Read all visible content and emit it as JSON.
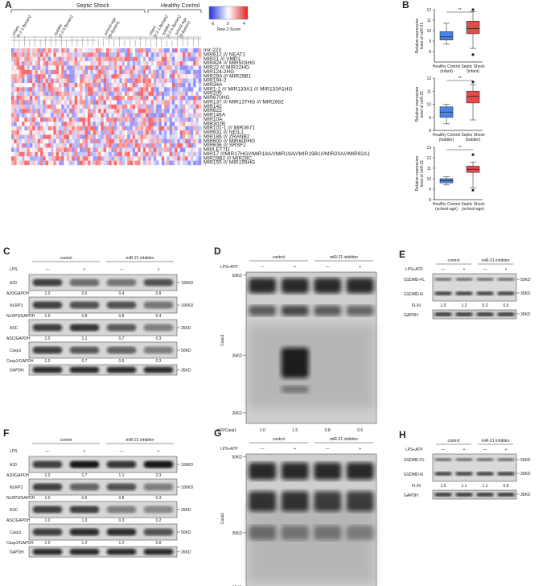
{
  "heatmap": {
    "panel": "A",
    "group_main": [
      "Septic Shock",
      "Healthy Control"
    ],
    "subgroups": [
      {
        "label": "infant",
        "range": "(0.2-1.8years)"
      },
      {
        "label": "toddler",
        "range": "(2.0-5.8years)"
      },
      {
        "label": "school-age",
        "range": "(6-8years)"
      },
      {
        "label": "infant",
        "range": "(0.2-1.8years)"
      },
      {
        "label": "toddler",
        "range": "(2.0-5.8years)"
      },
      {
        "label": "school-age",
        "range": "(6-8years)"
      }
    ],
    "colorbar_ticks": [
      "-6",
      "0",
      "4"
    ],
    "colorbar_title": "Row Z-Score",
    "genes": [
      "mir-223",
      "MIR612 /// NEAT1",
      "MIR21 /// VMP1",
      "MIR424 /// MIR503HG",
      "MIR22 /// MIR22HG",
      "MIR124-2HG",
      "MIR29A /// MIR29B1",
      "MIR194-2",
      "MIR34A",
      "MIR1-2 /// MIR133A1 /// MIR133A1HG",
      "MIR205",
      "MIR670HG",
      "MIR137 /// MIR137HG /// MIR2682",
      "MIR142",
      "MIR622",
      "MIR146A",
      "MIR10A",
      "MIR302B",
      "MIR101-1 /// MIR3671",
      "MIR631 /// NEIL1",
      "MIR186 /// ZRANB2",
      "MIR600 /// MIR600HG",
      "MIR636 /// SRSF2",
      "MIRLET7D",
      "MIR17 ///MIR17HG///MIR18A///MIR19A///MIR19B1///MIR20A///MIR92A1",
      "MIR29B2 /// MIR29C",
      "MIR155 /// MIR155HG"
    ]
  },
  "chart_data": [
    {
      "type": "box",
      "panel": "B",
      "ylabel": "Relative expression level of miR-21",
      "ylim": [
        7,
        12
      ],
      "yticks": [
        8,
        9,
        10,
        11,
        12
      ],
      "significance": "**",
      "categories": [
        "Healthy Control (infant)",
        "Septic Shock (infant)"
      ],
      "category_lines": [
        [
          "Healthy Control",
          "(infant)"
        ],
        [
          "Septic Shock",
          "(infant)"
        ]
      ],
      "boxes": [
        {
          "min": 8.7,
          "q1": 9.1,
          "median": 9.4,
          "q3": 9.9,
          "max": 10.7,
          "outliers": [],
          "color": "#4a86e8"
        },
        {
          "min": 8.3,
          "q1": 9.7,
          "median": 10.2,
          "q3": 10.9,
          "max": 11.8,
          "outliers": [
            12.0,
            7.7
          ],
          "color": "#e84a4a"
        }
      ]
    },
    {
      "type": "box",
      "panel": "B",
      "ylabel": "Relative expression level of miR-21",
      "ylim": [
        8,
        12
      ],
      "yticks": [
        8,
        9,
        10,
        11,
        12
      ],
      "significance": "**",
      "categories": [
        "Healthy Control (toddler)",
        "Septic Shock (toddler)"
      ],
      "category_lines": [
        [
          "Healthy Control",
          "(toddler)"
        ],
        [
          "Septic Shock",
          "(toddler)"
        ]
      ],
      "boxes": [
        {
          "min": 8.5,
          "q1": 9.0,
          "median": 9.4,
          "q3": 9.8,
          "max": 10.0,
          "outliers": [],
          "color": "#4a86e8"
        },
        {
          "min": 8.8,
          "q1": 10.1,
          "median": 10.6,
          "q3": 11.0,
          "max": 11.5,
          "outliers": [
            11.7
          ],
          "color": "#e84a4a"
        }
      ]
    },
    {
      "type": "box",
      "panel": "B",
      "ylabel": "Relative expression level of miR-21",
      "ylim": [
        8,
        13
      ],
      "yticks": [
        8,
        9,
        10,
        11,
        12,
        13
      ],
      "significance": "**",
      "categories": [
        "Healthy Control (school-age)",
        "Septic Shock (school-age)"
      ],
      "category_lines": [
        [
          "Healthy Control",
          "(school-age)"
        ],
        [
          "Septic Shock",
          "(school-age)"
        ]
      ],
      "boxes": [
        {
          "min": 9.4,
          "q1": 9.6,
          "median": 9.8,
          "q3": 10.0,
          "max": 10.2,
          "outliers": [],
          "color": "#4a86e8"
        },
        {
          "min": 9.1,
          "q1": 10.6,
          "median": 10.9,
          "q3": 11.2,
          "max": 11.6,
          "outliers": [
            12.3,
            8.9
          ],
          "color": "#e84a4a"
        }
      ]
    }
  ],
  "blots": {
    "C": {
      "group_labels": [
        "control",
        "miR-21 inhibitor"
      ],
      "treatment": "LPS",
      "signs": [
        "—",
        "+",
        "—",
        "+"
      ],
      "rows": [
        {
          "name": "A20",
          "marker": "100KD",
          "ratio_label": "A20/GAPDH",
          "ratios": [
            "1.0",
            "0.5",
            "0.4",
            "0.8"
          ]
        },
        {
          "name": "NLRP3",
          "marker": "100KD",
          "ratio_label": "NLRP3/GAPDH",
          "ratios": [
            "1.0",
            "0.8",
            "0.8",
            "0.4"
          ]
        },
        {
          "name": "ASC",
          "marker": "25KD",
          "ratio_label": "ASC/GAPDH",
          "ratios": [
            "1.0",
            "1.1",
            "0.7",
            "0.3"
          ]
        },
        {
          "name": "Casp1",
          "marker": "50KD",
          "ratio_label": "Casp1/GAPDH",
          "ratios": [
            "1.0",
            "0.7",
            "0.6",
            "0.3"
          ]
        },
        {
          "name": "GAPDH",
          "marker": "35KD",
          "ratio_label": "",
          "ratios": []
        }
      ]
    },
    "D": {
      "group_labels": [
        "control",
        "miR-21 inhibitor"
      ],
      "treatment": "LPS+ATP",
      "signs": [
        "—",
        "+",
        "—",
        "+"
      ],
      "ylabel": "Casp1",
      "markers": [
        "50KD",
        "35KD",
        "20KD"
      ],
      "ratio_label": "p20/Casp1",
      "ratios": [
        "1.0",
        "1.5",
        "0.8",
        "0.6"
      ]
    },
    "E": {
      "group_labels": [
        "control",
        "miR-21 inhibitor"
      ],
      "treatment": "LPS+ATP",
      "signs": [
        "—",
        "+",
        "—",
        "+"
      ],
      "rows": [
        {
          "name": "GSDMD-FL",
          "marker": "55KD"
        },
        {
          "name": "GSDMD-N",
          "marker": "35KD"
        },
        {
          "name": "GAPDH",
          "marker": "35KD"
        }
      ],
      "ratio_label": "FL/N",
      "ratios": [
        "1.0",
        "1.2",
        "0.3",
        "0.5"
      ]
    },
    "F": {
      "group_labels": [
        "control",
        "miR-21 inhibitor"
      ],
      "treatment": "LPS",
      "signs": [
        "—",
        "+",
        "—",
        "+"
      ],
      "rows": [
        {
          "name": "A20",
          "marker": "100KD",
          "ratio_label": "A20/GAPDH",
          "ratios": [
            "1.0",
            "1.7",
            "1.1",
            "2.3"
          ]
        },
        {
          "name": "NLRP3",
          "marker": "100KD",
          "ratio_label": "NLRP3/GAPDH",
          "ratios": [
            "1.0",
            "0.6",
            "0.8",
            "0.3"
          ]
        },
        {
          "name": "ASC",
          "marker": "25KD",
          "ratio_label": "ASC/GAPDH",
          "ratios": [
            "1.0",
            "1.0",
            "0.3",
            "0.2"
          ]
        },
        {
          "name": "Casp1",
          "marker": "50KD",
          "ratio_label": "Casp1/GAPDH",
          "ratios": [
            "1.0",
            "1.2",
            "1.2",
            "0.8"
          ]
        },
        {
          "name": "GAPDH",
          "marker": "35KD",
          "ratio_label": "",
          "ratios": []
        }
      ]
    },
    "G": {
      "group_labels": [
        "control",
        "miR-21 inhibitor"
      ],
      "treatment": "LPS+ATP",
      "signs": [
        "—",
        "+",
        "—",
        "+"
      ],
      "ylabel": "Casp1",
      "markers": [
        "50KD",
        "35KD",
        "20KD"
      ]
    },
    "H": {
      "group_labels": [
        "control",
        "miR-21 inhibitor"
      ],
      "treatment": "LPS+ATP",
      "signs": [
        "—",
        "+",
        "—",
        "+"
      ],
      "rows": [
        {
          "name": "GSDMD-FL",
          "marker": "55KD"
        },
        {
          "name": "GSDMD-N",
          "marker": "35KD"
        },
        {
          "name": "GAPDH",
          "marker": "35KD"
        }
      ],
      "ratio_label": "FL/N",
      "ratios": [
        "1.0",
        "1.1",
        "1.1",
        "0.8"
      ]
    }
  }
}
